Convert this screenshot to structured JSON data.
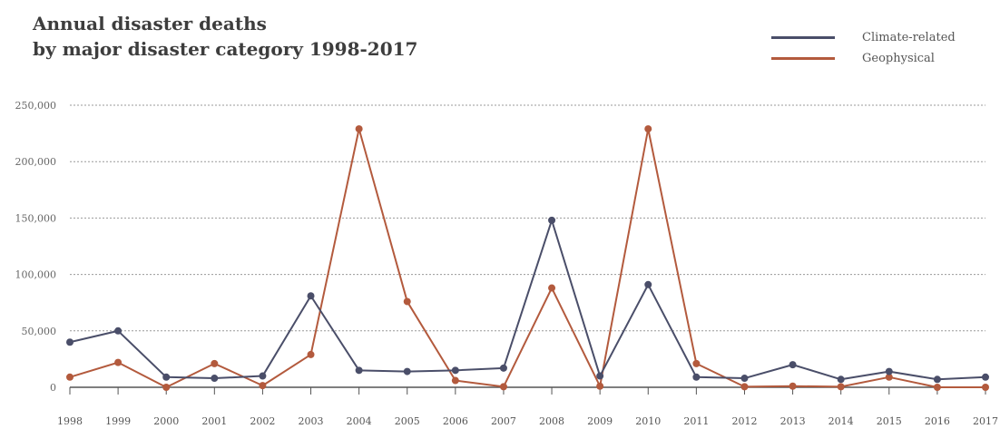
{
  "title_line1": "Annual disaster deaths",
  "title_line2": "by major disaster category 1998-2017",
  "colors": {
    "climate": "#4a4e69",
    "geo": "#b35a3d",
    "grid": "#999999",
    "axis": "#555555"
  },
  "chart_data": {
    "type": "line",
    "title": "Annual disaster deaths by major disaster category 1998-2017",
    "xlabel": "",
    "ylabel": "",
    "x": [
      "1998",
      "1999",
      "2000",
      "2001",
      "2002",
      "2003",
      "2004",
      "2005",
      "2006",
      "2007",
      "2008",
      "2009",
      "2010",
      "2011",
      "2012",
      "2013",
      "2014",
      "2015",
      "2016",
      "2017"
    ],
    "ylim": [
      0,
      250000
    ],
    "yticks": [
      0,
      50000,
      100000,
      150000,
      200000,
      250000
    ],
    "ytick_labels": [
      "0",
      "50,000",
      "100,000",
      "150,000",
      "200,000",
      "250,000"
    ],
    "grid": true,
    "legend_position": "top-right",
    "series": [
      {
        "name": "Climate-related",
        "values": [
          40000,
          50000,
          9000,
          8000,
          10000,
          81000,
          15000,
          14000,
          15000,
          17000,
          148000,
          10000,
          91000,
          9000,
          8000,
          20000,
          7000,
          14000,
          7000,
          9000
        ]
      },
      {
        "name": "Geophysical",
        "values": [
          9000,
          22000,
          0,
          21000,
          1500,
          29000,
          229000,
          76000,
          6000,
          500,
          88000,
          1000,
          229000,
          21000,
          500,
          1000,
          500,
          9000,
          0,
          0
        ]
      }
    ]
  }
}
